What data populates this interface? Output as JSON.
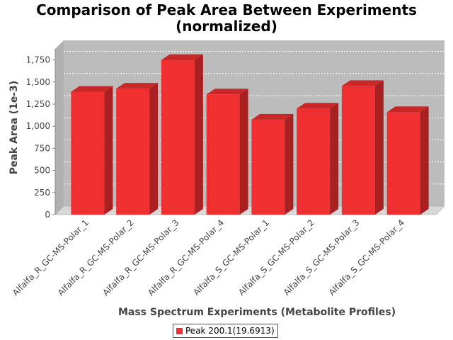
{
  "chart_data": {
    "type": "bar",
    "title_line1": "Comparison of Peak Area Between Experiments",
    "title_line2": "(normalized)",
    "xlabel": "Mass Spectrum Experiments (Metabolite Profiles)",
    "ylabel": "Peak Area (1e-3)",
    "ylim": [
      0,
      1875
    ],
    "yticks": [
      0,
      250,
      500,
      750,
      1000,
      1250,
      1500,
      1750
    ],
    "ytick_labels": [
      "0",
      "250",
      "500",
      "750",
      "1,000",
      "1,250",
      "1,500",
      "1,750"
    ],
    "categories": [
      "Alfalfa_R_GC-MS-Polar_1",
      "Alfalfa_R_GC-MS-Polar_2",
      "Alfalfa_R_GC-MS-Polar_3",
      "Alfalfa_R_GC-MS-Polar_4",
      "Alfalfa_S_GC-MS-Polar_1",
      "Alfalfa_S_GC-MS-Polar_2",
      "Alfalfa_S_GC-MS-Polar_3",
      "Alfalfa_S_GC-MS-Polar_4"
    ],
    "series": [
      {
        "name": "Peak 200.1(19.6913)",
        "color": "#f03030",
        "values": [
          1390,
          1425,
          1750,
          1360,
          1075,
          1200,
          1455,
          1160
        ]
      }
    ],
    "grid": true,
    "legend_position": "bottom"
  }
}
